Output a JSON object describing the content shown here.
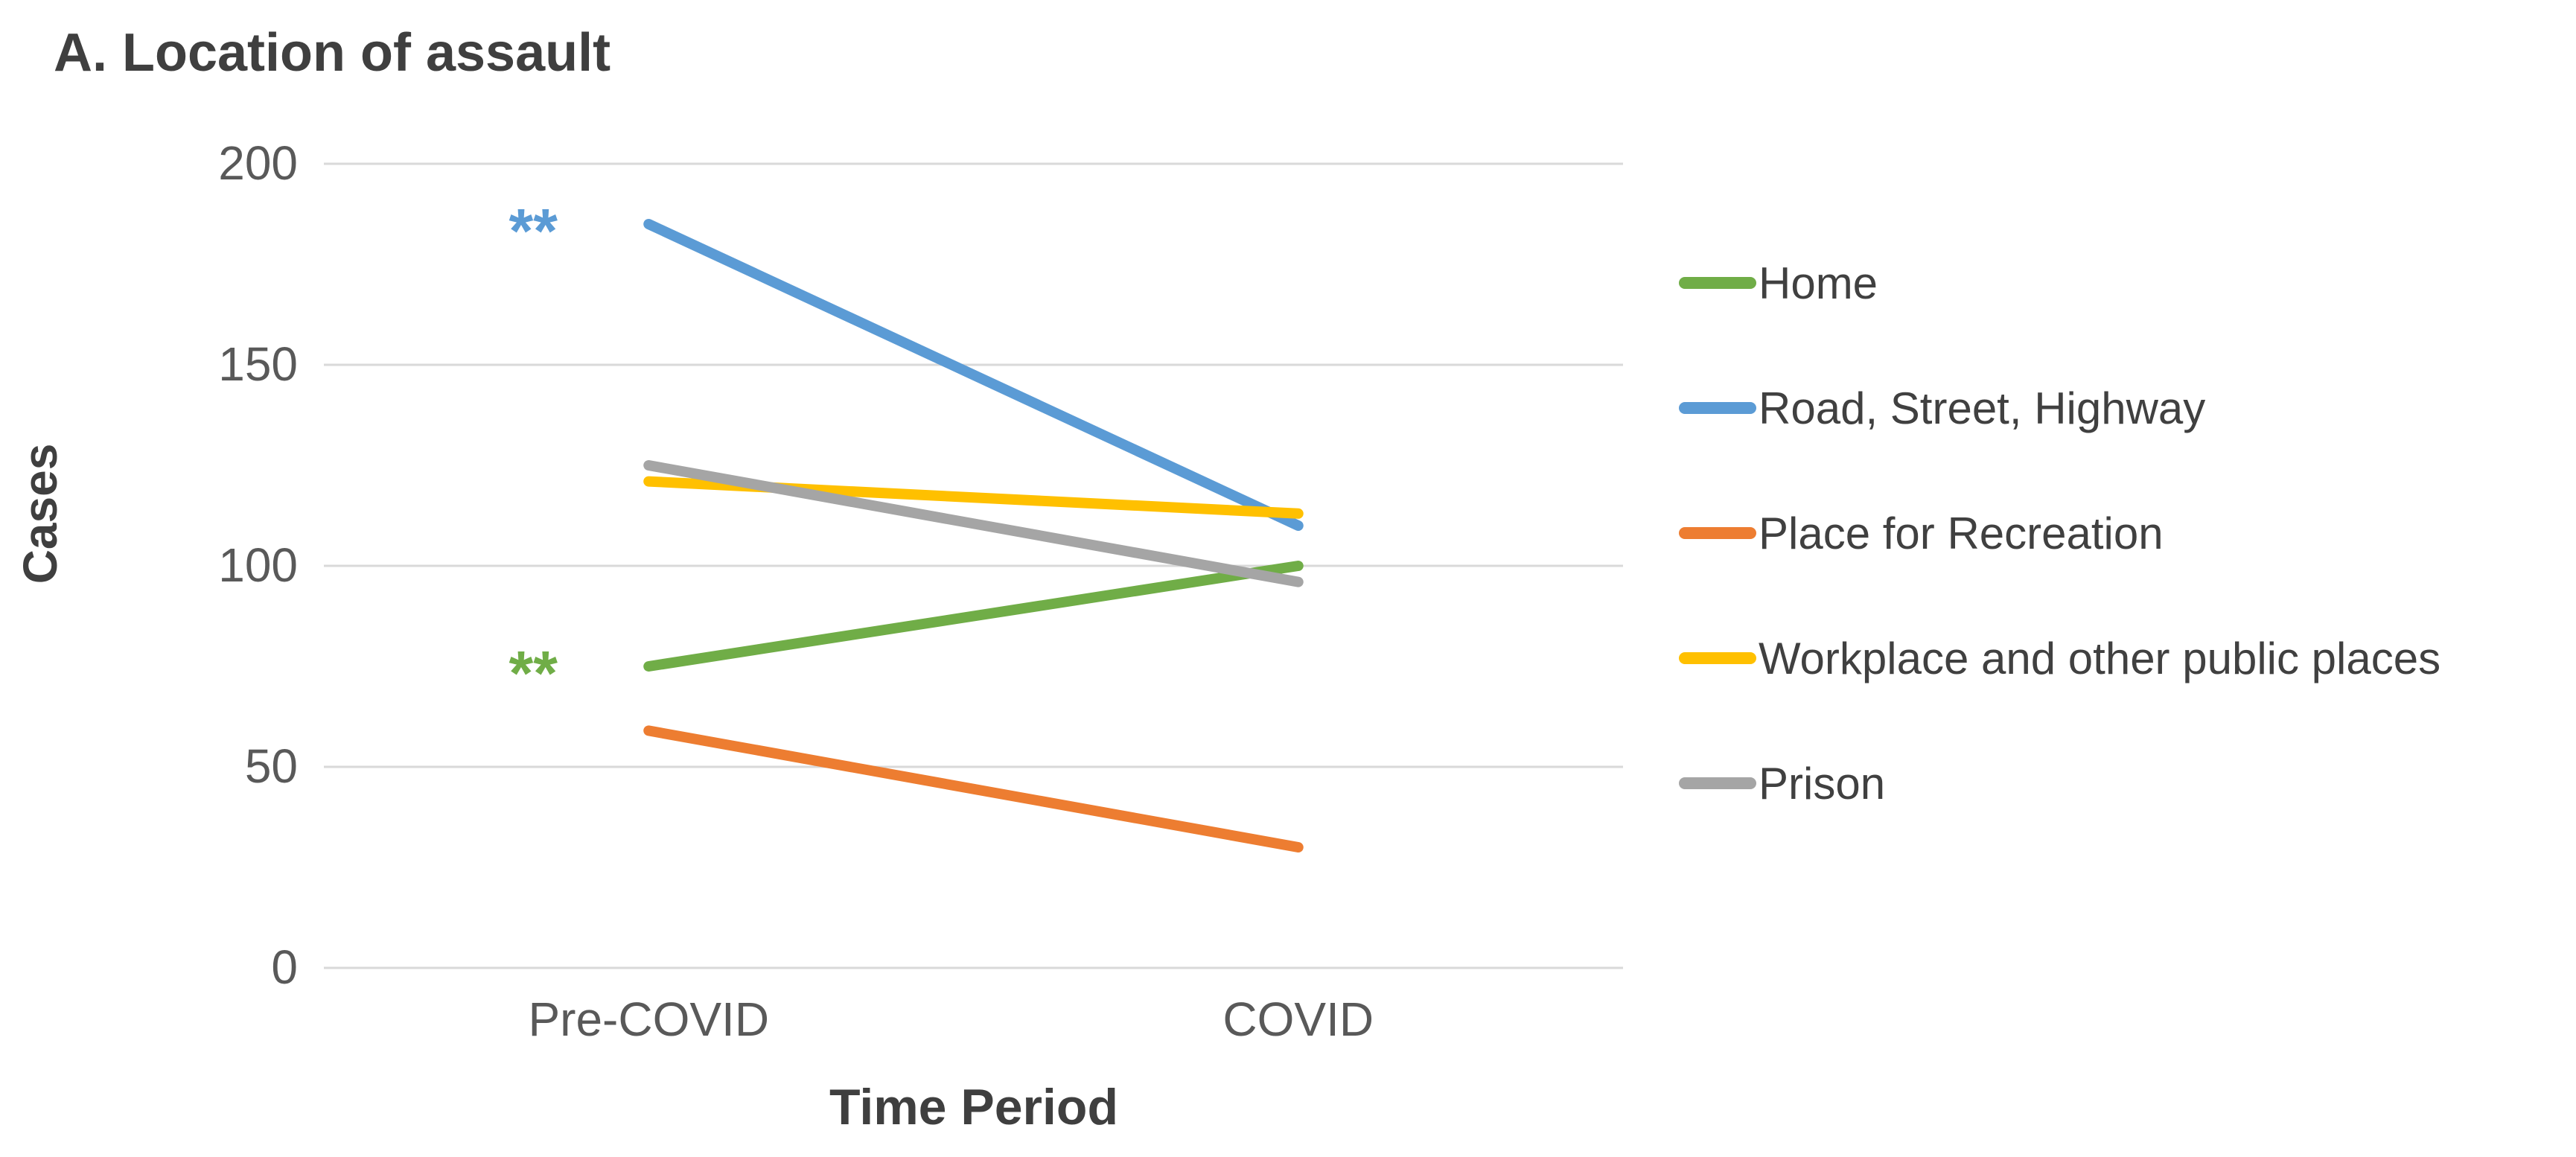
{
  "chart_data": {
    "type": "line",
    "title": "A. Location of assault",
    "categories": [
      "Pre-COVID",
      "COVID"
    ],
    "xlabel": "Time Period",
    "ylabel": "Cases",
    "ylim": [
      0,
      200
    ],
    "yticks": [
      0,
      50,
      100,
      150,
      200
    ],
    "grid": "horizontal",
    "grid_color": "#D9D9D9",
    "legend_position": "right",
    "series": [
      {
        "name": "Home",
        "color": "#70AD47",
        "values": [
          75,
          100
        ]
      },
      {
        "name": "Road, Street, Highway",
        "color": "#5B9BD5",
        "values": [
          185,
          110
        ]
      },
      {
        "name": "Place for Recreation",
        "color": "#ED7D31",
        "values": [
          59,
          30
        ]
      },
      {
        "name": "Workplace and other public places",
        "color": "#FFC000",
        "values": [
          121,
          113
        ]
      },
      {
        "name": "Prison",
        "color": "#A5A5A5",
        "values": [
          125,
          96
        ]
      }
    ],
    "annotations": [
      {
        "text": "**",
        "series": "Road, Street, Highway",
        "category_index": 0,
        "value": 185,
        "color": "#5B9BD5"
      },
      {
        "text": "**",
        "series": "Home",
        "category_index": 0,
        "value": 75,
        "color": "#70AD47"
      }
    ],
    "text_colors": {
      "title": "#3F3F3F",
      "axis_titles": "#3F3F3F",
      "tick_labels": "#595959",
      "legend_labels": "#404040"
    }
  }
}
